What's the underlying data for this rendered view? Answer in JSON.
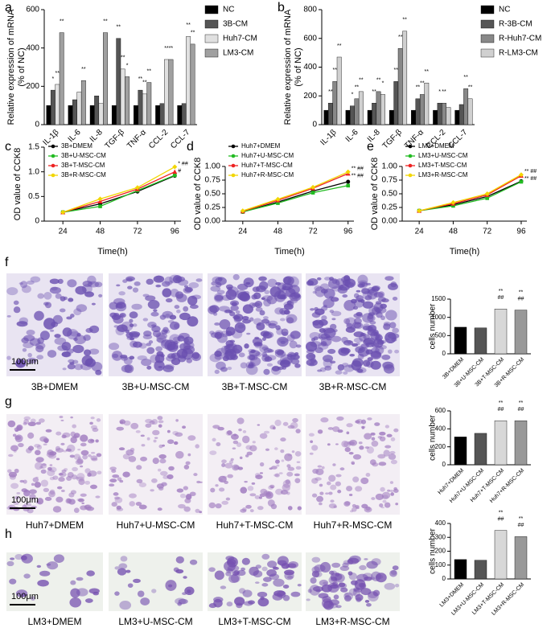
{
  "chart_data": [
    {
      "type": "bar",
      "panel": "a",
      "ylabel": [
        "Relative expression of mRNA",
        "(% of NC)"
      ],
      "categories": [
        "IL-1β",
        "IL-6",
        "IL-8",
        "TGF-β",
        "TNF-α",
        "CCL-2",
        "CCL-7"
      ],
      "ylim": [
        0,
        600
      ],
      "yticks": [
        0,
        200,
        400,
        600
      ],
      "series": [
        {
          "name": "NC",
          "color": "#000000",
          "values": [
            100,
            100,
            100,
            100,
            100,
            100,
            100
          ],
          "annotations": [
            null,
            null,
            null,
            null,
            null,
            null,
            null
          ]
        },
        {
          "name": "3B-CM",
          "color": "#555555",
          "values": [
            180,
            130,
            150,
            450,
            180,
            110,
            110
          ],
          "annotations": [
            "*",
            null,
            null,
            "**",
            "**",
            null,
            null
          ]
        },
        {
          "name": "Huh7-CM",
          "color": "#e0e0e0",
          "values": [
            210,
            170,
            110,
            290,
            160,
            340,
            460
          ],
          "annotations": [
            "**",
            null,
            null,
            "**",
            "**",
            "**",
            "**"
          ]
        },
        {
          "name": "LM3-CM",
          "color": "#a0a0a0",
          "values": [
            480,
            230,
            480,
            250,
            220,
            340,
            420
          ],
          "annotations": [
            "**",
            "**",
            "**",
            "*",
            "**",
            "**",
            "**"
          ]
        }
      ]
    },
    {
      "type": "bar",
      "panel": "b",
      "ylabel": [
        "Relative expression of mRNA",
        "(% of NC)"
      ],
      "categories": [
        "IL-1β",
        "IL-6",
        "IL-8",
        "TGF-β",
        "TNF-α",
        "CCL-2",
        "CCL-7"
      ],
      "ylim": [
        0,
        800
      ],
      "yticks": [
        0,
        200,
        400,
        600,
        800
      ],
      "series": [
        {
          "name": "NC",
          "color": "#000000",
          "values": [
            100,
            100,
            100,
            100,
            100,
            100,
            100
          ],
          "annotations": [
            null,
            null,
            null,
            null,
            null,
            null,
            null
          ]
        },
        {
          "name": "R-3B-CM",
          "color": "#555555",
          "values": [
            150,
            130,
            150,
            300,
            180,
            150,
            140
          ],
          "annotations": [
            "**",
            "*",
            "**",
            "**",
            "**",
            "*",
            null
          ]
        },
        {
          "name": "R-Huh7-CM",
          "color": "#888888",
          "values": [
            300,
            180,
            230,
            530,
            210,
            150,
            250
          ],
          "annotations": [
            "**",
            "**",
            "**",
            "**",
            "**",
            "**",
            "**"
          ]
        },
        {
          "name": "R-LM3-CM",
          "color": "#d0d0d0",
          "values": [
            470,
            230,
            210,
            650,
            290,
            120,
            180
          ],
          "annotations": [
            "**",
            "**",
            "*",
            "**",
            "**",
            null,
            "**"
          ]
        }
      ]
    },
    {
      "type": "line",
      "panel": "c",
      "ylabel": "OD value of CCK8",
      "xlabel": "Time(h)",
      "x": [
        24,
        48,
        72,
        96
      ],
      "xlim": [
        12,
        100
      ],
      "xticks": [
        24,
        48,
        72,
        96
      ],
      "ylim": [
        0,
        1.5
      ],
      "yticks": [
        0,
        0.5,
        {
          "value": 1,
          "label": "1.0"
        },
        1.5
      ],
      "annotations": [
        "* ##",
        "#"
      ],
      "series": [
        {
          "name": "3B+DMEM",
          "color": "#000000",
          "marker": "circle",
          "values": [
            0.18,
            0.35,
            0.6,
            0.92
          ]
        },
        {
          "name": "3B+U-MSC-CM",
          "color": "#22bb22",
          "marker": "square",
          "values": [
            0.18,
            0.3,
            0.62,
            0.93
          ]
        },
        {
          "name": "3B+T-MSC-CM",
          "color": "#ee2222",
          "marker": "triangle",
          "values": [
            0.18,
            0.4,
            0.65,
            1.0
          ]
        },
        {
          "name": "3B+R-MSC-CM",
          "color": "#f2d600",
          "marker": "diamond",
          "values": [
            0.18,
            0.45,
            0.68,
            1.1
          ]
        }
      ]
    },
    {
      "type": "line",
      "panel": "d",
      "ylabel": "OD value of CCK8",
      "xlabel": "Time(h)",
      "x": [
        24,
        48,
        72,
        96
      ],
      "xlim": [
        12,
        100
      ],
      "xticks": [
        24,
        48,
        72,
        96
      ],
      "ylim": [
        0,
        1
      ],
      "yticks": [
        {
          "value": 0,
          "label": "0.00"
        },
        0.25,
        {
          "value": 0.5,
          "label": "0.50"
        },
        0.75,
        {
          "value": 1,
          "label": "1.00"
        }
      ],
      "annotations": [
        "** ##",
        "** ##"
      ],
      "series": [
        {
          "name": "Huh7+DMEM",
          "color": "#000000",
          "marker": "circle",
          "values": [
            0.17,
            0.35,
            0.55,
            0.72
          ]
        },
        {
          "name": "Huh7+U-MSC-CM",
          "color": "#22bb22",
          "marker": "square",
          "values": [
            0.17,
            0.33,
            0.52,
            0.65
          ]
        },
        {
          "name": "Huh7+T-MSC-CM",
          "color": "#ee2222",
          "marker": "triangle",
          "values": [
            0.18,
            0.38,
            0.6,
            0.87
          ]
        },
        {
          "name": "Huh7+R-MSC-CM",
          "color": "#f2d600",
          "marker": "diamond",
          "values": [
            0.19,
            0.4,
            0.62,
            0.9
          ]
        }
      ]
    },
    {
      "type": "line",
      "panel": "e",
      "ylabel": "OD value of CCK8",
      "xlabel": "Time(h)",
      "x": [
        24,
        48,
        72,
        96
      ],
      "xlim": [
        12,
        100
      ],
      "xticks": [
        24,
        48,
        72,
        96
      ],
      "ylim": [
        0,
        1
      ],
      "yticks": [
        {
          "value": 0,
          "label": "0.00"
        },
        0.25,
        {
          "value": 0.5,
          "label": "0.50"
        },
        0.75,
        {
          "value": 1,
          "label": "1.00"
        }
      ],
      "annotations": [
        "** ##",
        "** ##"
      ],
      "series": [
        {
          "name": "LM3+DMEM",
          "color": "#000000",
          "marker": "circle",
          "values": [
            0.19,
            0.3,
            0.45,
            0.73
          ]
        },
        {
          "name": "LM3+U-MSC-CM",
          "color": "#22bb22",
          "marker": "square",
          "values": [
            0.19,
            0.28,
            0.42,
            0.72
          ]
        },
        {
          "name": "LM3+T-MSC-CM",
          "color": "#ee2222",
          "marker": "triangle",
          "values": [
            0.19,
            0.32,
            0.48,
            0.83
          ]
        },
        {
          "name": "LM3+R-MSC-CM",
          "color": "#f2d600",
          "marker": "diamond",
          "values": [
            0.19,
            0.34,
            0.5,
            0.85
          ]
        }
      ]
    },
    {
      "type": "simplebar",
      "panel": "f",
      "ylabel": "cells number",
      "categories": [
        "3B+DMEM",
        "3B+U-MSC-CM",
        "3B+T-MSC-CM",
        "3B+R-MSC-CM"
      ],
      "values": [
        730,
        710,
        1230,
        1200
      ],
      "colors": [
        "#000000",
        "#555555",
        "#d8d8d8",
        "#999999"
      ],
      "annotations": [
        null,
        null,
        [
          "**",
          "##"
        ],
        [
          "**",
          "##"
        ]
      ],
      "ylim": [
        0,
        1500
      ],
      "yticks": [
        0,
        500,
        1000,
        1500
      ]
    },
    {
      "type": "simplebar",
      "panel": "g",
      "ylabel": "cells number",
      "categories": [
        "Huh7+DMEM",
        "Huh7+U-MSC-CM",
        "Huh7+T-MSC-CM",
        "Huh7+R-MSC-CM"
      ],
      "values": [
        310,
        350,
        490,
        490
      ],
      "colors": [
        "#000000",
        "#555555",
        "#d8d8d8",
        "#999999"
      ],
      "annotations": [
        null,
        null,
        [
          "**",
          "##"
        ],
        [
          "**",
          "##"
        ]
      ],
      "ylim": [
        0,
        600
      ],
      "yticks": [
        0,
        200,
        400,
        600
      ]
    },
    {
      "type": "simplebar",
      "panel": "h",
      "ylabel": "cells number",
      "categories": [
        "LM3+DMEM",
        "LM3+U-MSC-CM",
        "LM3+T-MSC-CM",
        "LM3+R-MSC-CM"
      ],
      "values": [
        140,
        135,
        350,
        305
      ],
      "colors": [
        "#000000",
        "#555555",
        "#d8d8d8",
        "#999999"
      ],
      "annotations": [
        null,
        null,
        [
          "**",
          "##"
        ],
        [
          "**",
          "##"
        ]
      ],
      "ylim": [
        0,
        400
      ],
      "yticks": [
        0,
        100,
        200,
        300,
        400
      ]
    }
  ],
  "micrographs": {
    "scale_bar": "100μm"
  }
}
